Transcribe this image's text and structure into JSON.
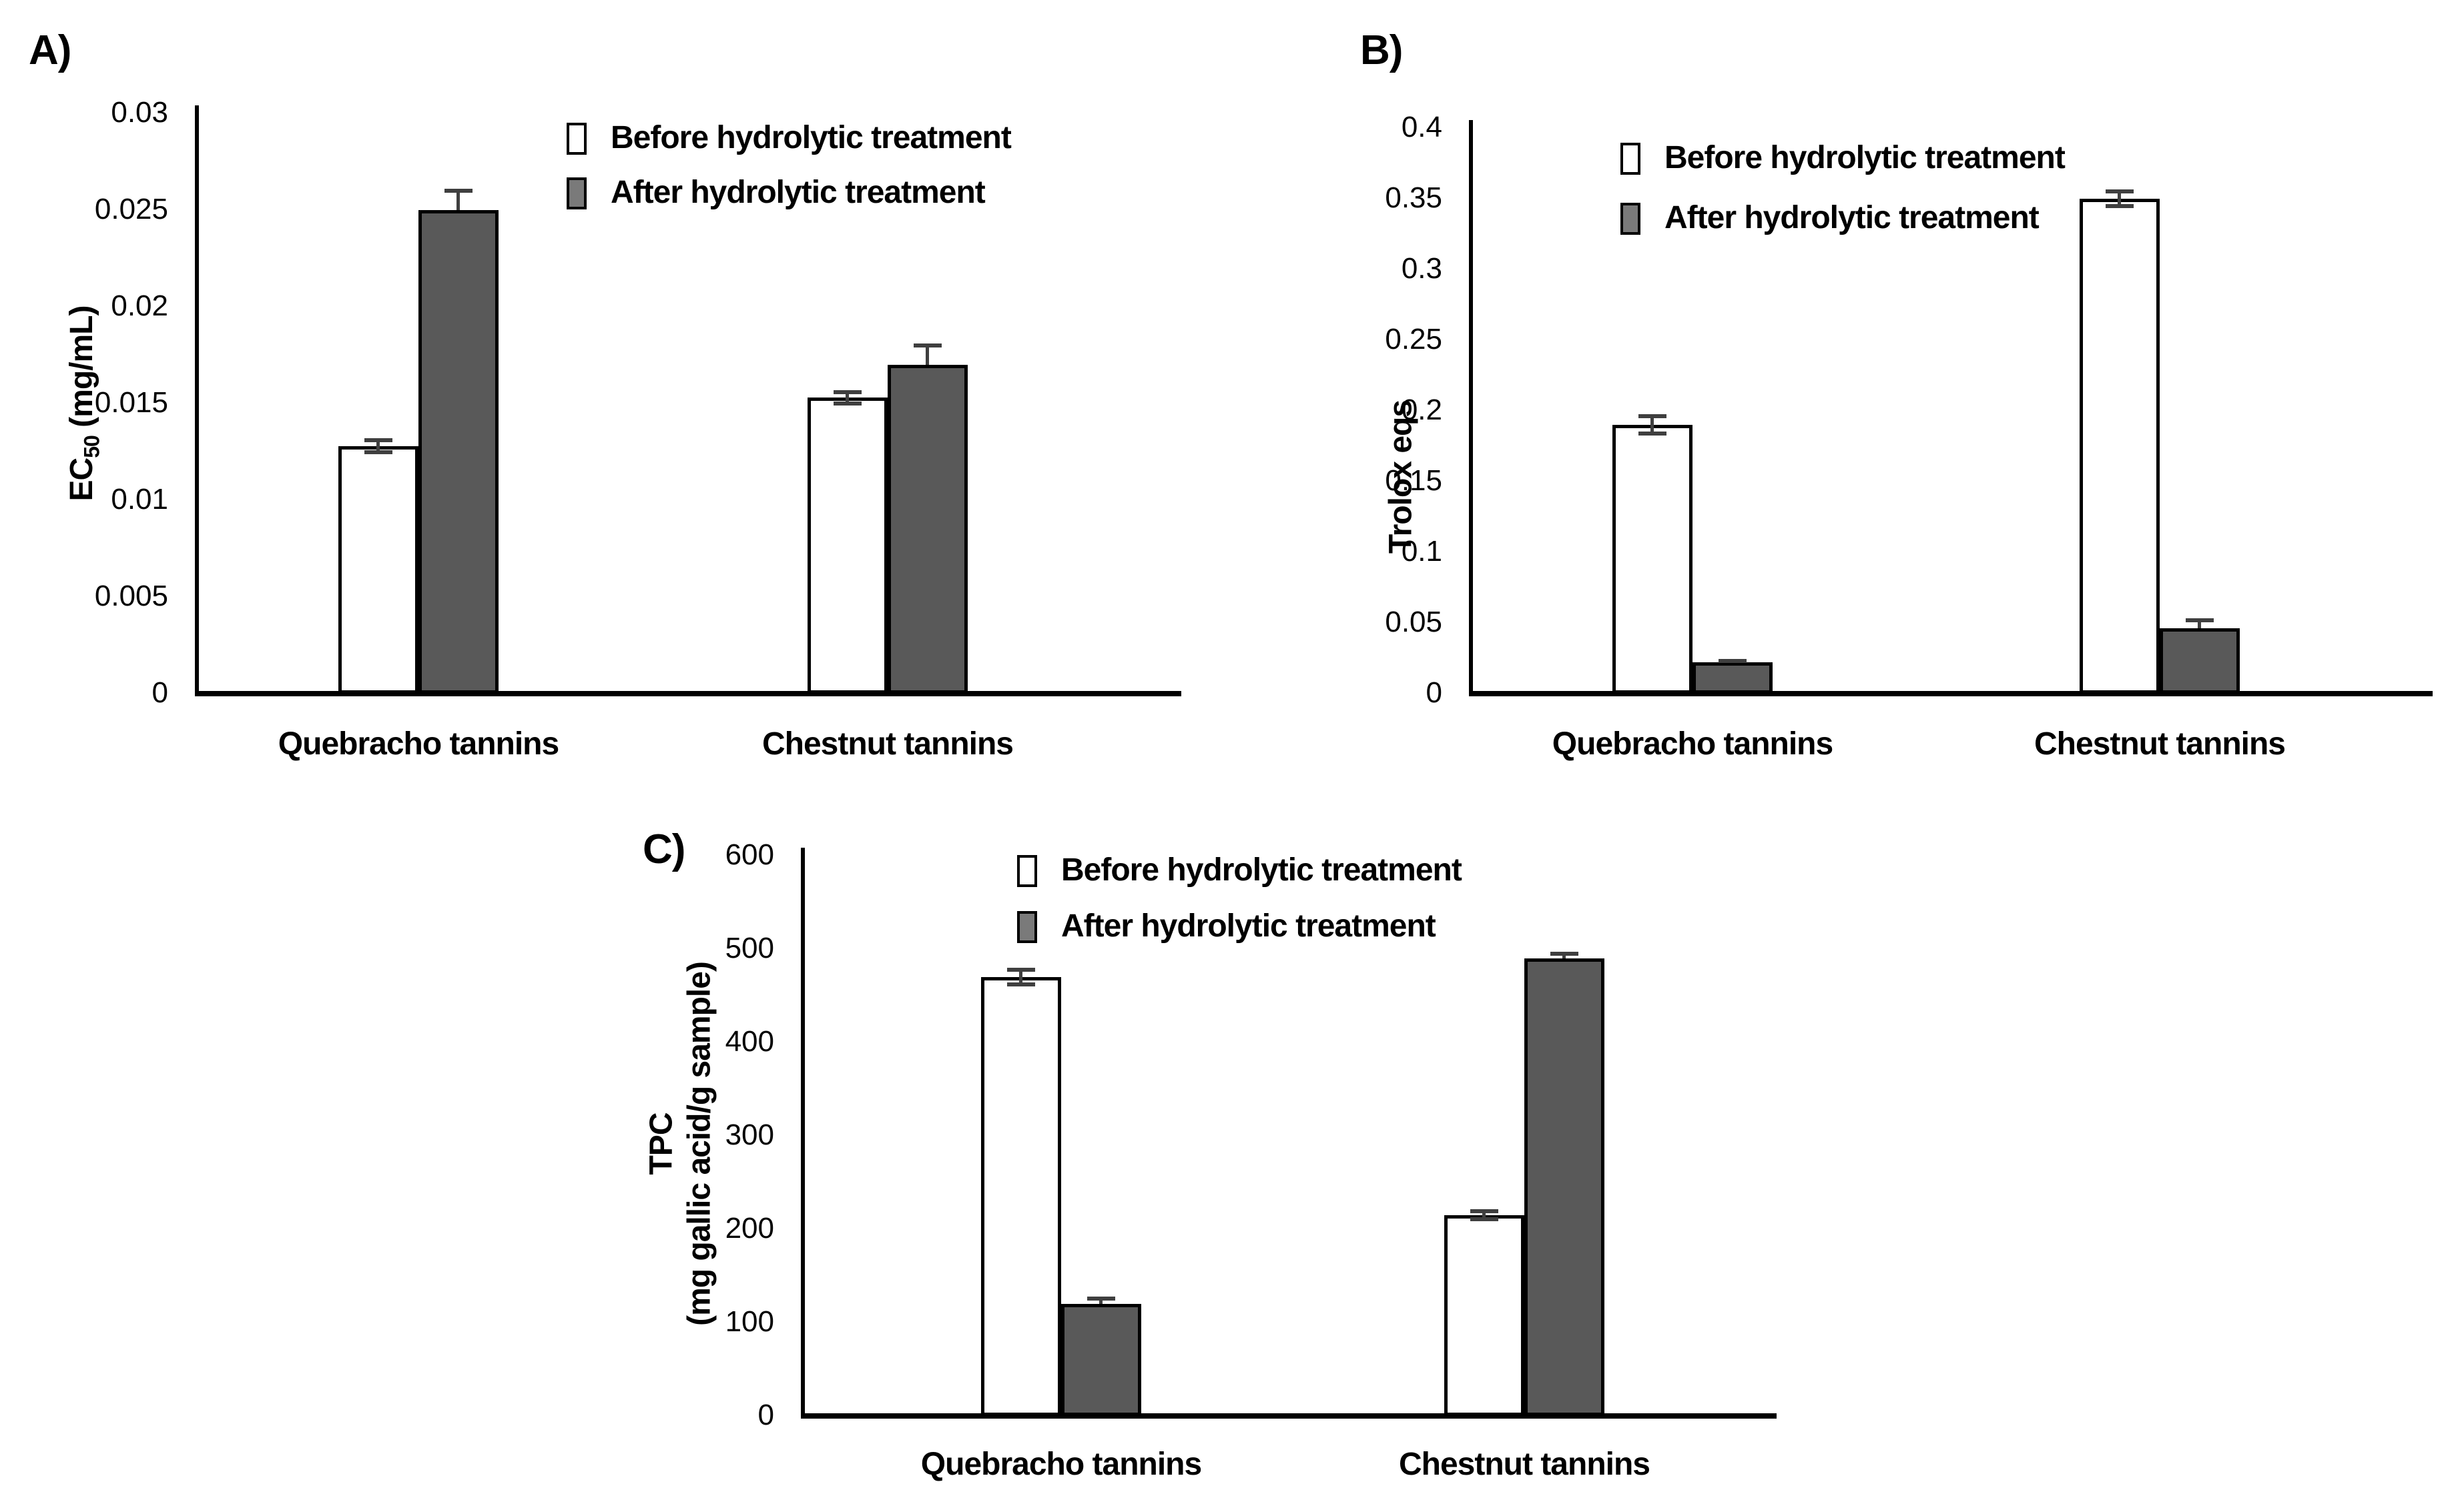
{
  "figure": {
    "background": "#ffffff",
    "colors": {
      "before_fill": "#ffffff",
      "after_fill": "#595959",
      "legend_after_fill": "#7a7a7a",
      "bar_border": "#000000",
      "error_bar": "#3f3f3f",
      "axis": "#000000",
      "text": "#000000"
    }
  },
  "chart_data": [
    {
      "type": "bar",
      "panel_label": "A)",
      "title": "",
      "xlabel": "",
      "ylabel": "EC50 (mg/mL)",
      "ylabel_lines": [
        [
          {
            "t": "EC"
          },
          {
            "t": "50",
            "sub": true
          },
          {
            "t": " (mg/mL)"
          }
        ]
      ],
      "ylim": [
        0,
        0.03
      ],
      "grid": false,
      "legend_position": "top-right-inside",
      "yticks": [
        {
          "label": "0.03",
          "v": 0.03
        },
        {
          "label": "0.025",
          "v": 0.025
        },
        {
          "label": "0.02",
          "v": 0.02
        },
        {
          "label": "0.015",
          "v": 0.015
        },
        {
          "label": "0.01",
          "v": 0.01
        },
        {
          "label": "0.005",
          "v": 0.005
        },
        {
          "label": "0",
          "v": 0
        }
      ],
      "categories": [
        "Quebracho tannins",
        "Chestnut tannins"
      ],
      "series": [
        {
          "name": "Before hydrolytic treatment",
          "key": "before",
          "values": [
            0.0128,
            0.0153
          ],
          "errors": [
            0.0003,
            0.0003
          ]
        },
        {
          "name": "After hydrolytic treatment",
          "key": "after",
          "values": [
            0.025,
            0.017
          ],
          "errors": [
            0.001,
            0.001
          ]
        }
      ]
    },
    {
      "type": "bar",
      "panel_label": "B)",
      "title": "",
      "xlabel": "",
      "ylabel": "Trolox eqs",
      "ylabel_lines": [
        [
          {
            "t": "Trolox eqs"
          }
        ]
      ],
      "ylim": [
        0,
        0.4
      ],
      "grid": false,
      "legend_position": "top-left-inside",
      "yticks": [
        {
          "label": "0.4",
          "v": 0.4
        },
        {
          "label": "0.35",
          "v": 0.35
        },
        {
          "label": "0.3",
          "v": 0.3
        },
        {
          "label": "0.25",
          "v": 0.25
        },
        {
          "label": "0.2",
          "v": 0.2
        },
        {
          "label": "0.15",
          "v": 0.15
        },
        {
          "label": "0.1",
          "v": 0.1
        },
        {
          "label": "0.05",
          "v": 0.05
        },
        {
          "label": "0",
          "v": 0
        }
      ],
      "categories": [
        "Quebracho tannins",
        "Chestnut tannins"
      ],
      "series": [
        {
          "name": "Before hydrolytic treatment",
          "key": "before",
          "values": [
            0.19,
            0.35
          ],
          "errors": [
            0.006,
            0.005
          ]
        },
        {
          "name": "After hydrolytic treatment",
          "key": "after",
          "values": [
            0.022,
            0.046
          ],
          "errors": [
            0.001,
            0.006
          ]
        }
      ]
    },
    {
      "type": "bar",
      "panel_label": "C)",
      "title": "",
      "xlabel": "",
      "ylabel": "TPC (mg gallic acid/g sample)",
      "ylabel_lines": [
        [
          {
            "t": "TPC"
          }
        ],
        [
          {
            "t": "(mg gallic acid/g sample)"
          }
        ]
      ],
      "ylim": [
        0,
        600
      ],
      "grid": false,
      "legend_position": "top-left-inside",
      "yticks": [
        {
          "label": "600",
          "v": 600
        },
        {
          "label": "500",
          "v": 500
        },
        {
          "label": "400",
          "v": 400
        },
        {
          "label": "300",
          "v": 300
        },
        {
          "label": "200",
          "v": 200
        },
        {
          "label": "100",
          "v": 100
        },
        {
          "label": "0",
          "v": 0
        }
      ],
      "categories": [
        "Quebracho tannins",
        "Chestnut tannins"
      ],
      "series": [
        {
          "name": "Before hydrolytic treatment",
          "key": "before",
          "values": [
            470,
            215
          ],
          "errors": [
            8,
            4
          ]
        },
        {
          "name": "After hydrolytic treatment",
          "key": "after",
          "values": [
            120,
            490
          ],
          "errors": [
            6,
            5
          ]
        }
      ]
    }
  ]
}
